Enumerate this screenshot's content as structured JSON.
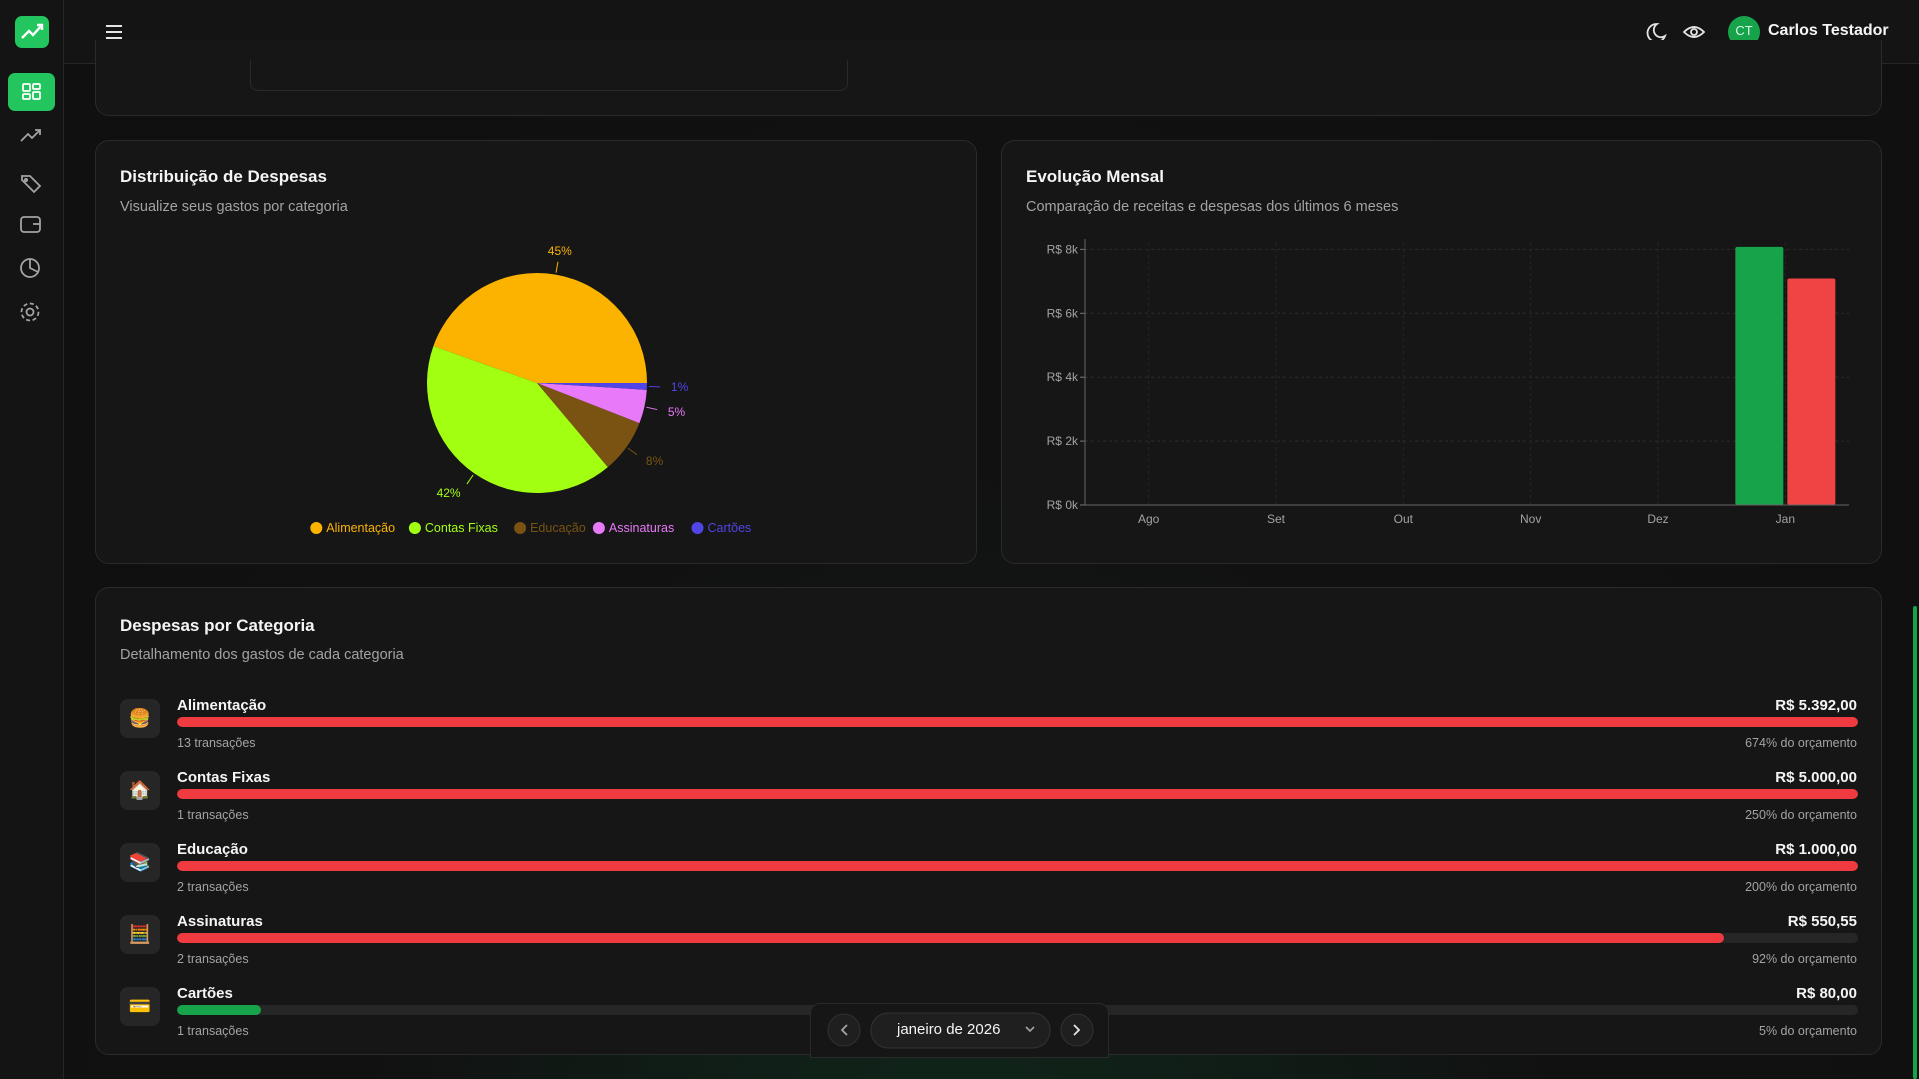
{
  "header": {
    "user_initials": "CT",
    "user_name": "Carlos Testador"
  },
  "cards": [
    {
      "title": "Distribuição de Despesas",
      "subtitle": "Visualize seus gastos por categoria"
    },
    {
      "title": "Evolução Mensal",
      "subtitle": "Comparação de receitas e despesas dos últimos 6 meses"
    }
  ],
  "chart_data": [
    {
      "type": "pie",
      "categories": [
        "Alimentação",
        "Contas Fixas",
        "Educação",
        "Assinaturas",
        "Cartões"
      ],
      "values": [
        45,
        42,
        8,
        5,
        1
      ],
      "value_labels": [
        "45%",
        "42%",
        "8%",
        "5%",
        "1%"
      ],
      "colors": [
        "#fbb300",
        "#a3ff12",
        "#7a5312",
        "#e879f9",
        "#4f46e5"
      ]
    },
    {
      "type": "bar",
      "categories": [
        "Ago",
        "Set",
        "Out",
        "Nov",
        "Dez",
        "Jan"
      ],
      "series": [
        {
          "color": "#16a34a",
          "values": [
            0,
            0,
            0,
            0,
            0,
            8080
          ]
        },
        {
          "color": "#ef4444",
          "values": [
            0,
            0,
            0,
            0,
            0,
            7090
          ]
        }
      ],
      "ylim": [
        0,
        8200
      ],
      "yticks": [
        {
          "value": 0,
          "label": "R$ 0k"
        },
        {
          "value": 2000,
          "label": "R$ 2k"
        },
        {
          "value": 4000,
          "label": "R$ 4k"
        },
        {
          "value": 6000,
          "label": "R$ 6k"
        },
        {
          "value": 8000,
          "label": "R$ 8k"
        }
      ],
      "grid": true
    }
  ],
  "category_breakdown": {
    "title": "Despesas por Categoria",
    "subtitle": "Detalhamento dos gastos de cada categoria",
    "items": [
      {
        "icon": "🍔",
        "name": "Alimentação",
        "amount": "R$ 5.392,00",
        "transactions": "13 transações",
        "budget": "674% do orçamento",
        "fill": 100,
        "color": "#ef3a40"
      },
      {
        "icon": "🏠",
        "name": "Contas Fixas",
        "amount": "R$ 5.000,00",
        "transactions": "1 transações",
        "budget": "250% do orçamento",
        "fill": 100,
        "color": "#ef3a40"
      },
      {
        "icon": "📚",
        "name": "Educação",
        "amount": "R$ 1.000,00",
        "transactions": "2 transações",
        "budget": "200% do orçamento",
        "fill": 100,
        "color": "#ef3a40"
      },
      {
        "icon": "🧮",
        "name": "Assinaturas",
        "amount": "R$ 550,55",
        "transactions": "2 transações",
        "budget": "92% do orçamento",
        "fill": 92,
        "color": "#ef3a40"
      },
      {
        "icon": "💳",
        "name": "Cartões",
        "amount": "R$ 80,00",
        "transactions": "1 transações",
        "budget": "5% do orçamento",
        "fill": 5,
        "color": "#16a34a"
      }
    ]
  },
  "month_picker": {
    "label": "janeiro de 2026"
  }
}
